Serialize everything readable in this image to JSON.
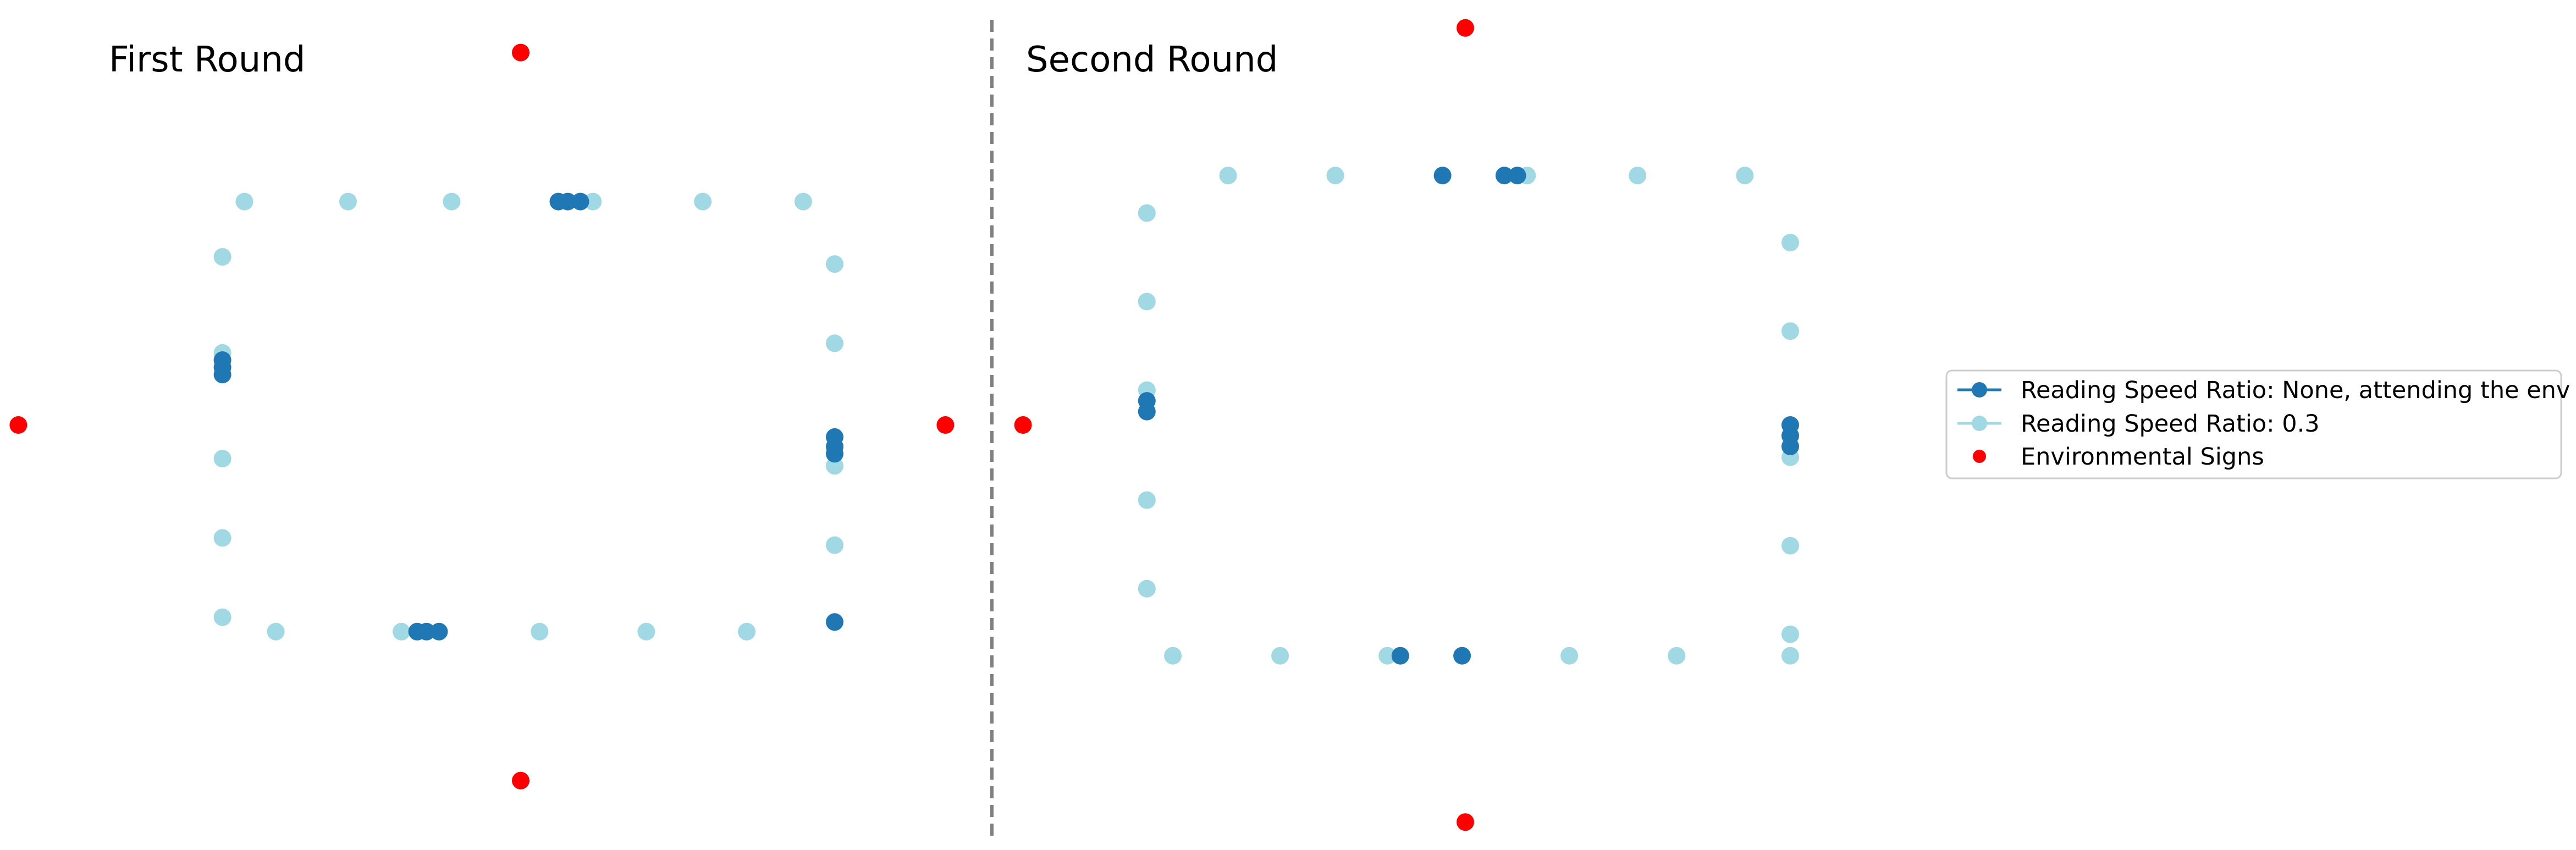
{
  "colors": {
    "attending": "#1f77b4",
    "ratio": "#a0d8e4",
    "signs": "#ff0000",
    "divider": "#808080"
  },
  "chart_data": [
    {
      "type": "scatter",
      "title": "First Round",
      "xlim": [
        -1.6,
        1.6
      ],
      "ylim": [
        -1.6,
        1.6
      ],
      "grid": false,
      "axes_visible": false,
      "series": [
        {
          "name": "Reading Speed Ratio: 0.3",
          "color": "#a0d8e4",
          "points": [
            [
              -0.88,
              0.93
            ],
            [
              -0.55,
              0.93
            ],
            [
              -0.22,
              0.93
            ],
            [
              0.23,
              0.93
            ],
            [
              0.58,
              0.93
            ],
            [
              0.9,
              0.93
            ],
            [
              1.0,
              0.67
            ],
            [
              1.0,
              0.34
            ],
            [
              1.0,
              -0.17
            ],
            [
              1.0,
              -0.5
            ],
            [
              -0.95,
              0.7
            ],
            [
              -0.95,
              0.3
            ],
            [
              -0.95,
              -0.14
            ],
            [
              -0.95,
              -0.47
            ],
            [
              -0.95,
              -0.8
            ],
            [
              -0.78,
              -0.86
            ],
            [
              -0.38,
              -0.86
            ],
            [
              0.06,
              -0.86
            ],
            [
              0.4,
              -0.86
            ],
            [
              0.72,
              -0.86
            ]
          ]
        },
        {
          "name": "Reading Speed Ratio: None, attending the env",
          "color": "#1f77b4",
          "points": [
            [
              0.12,
              0.93
            ],
            [
              0.15,
              0.93
            ],
            [
              0.19,
              0.93
            ],
            [
              1.0,
              -0.05
            ],
            [
              1.0,
              -0.09
            ],
            [
              1.0,
              -0.12
            ],
            [
              -0.95,
              0.27
            ],
            [
              -0.95,
              0.24
            ],
            [
              -0.95,
              0.21
            ],
            [
              -0.33,
              -0.86
            ],
            [
              -0.3,
              -0.86
            ],
            [
              -0.26,
              -0.86
            ],
            [
              1.0,
              -0.82
            ]
          ]
        },
        {
          "name": "Environmental Signs",
          "color": "#ff0000",
          "points": [
            [
              0,
              1.55
            ],
            [
              1.6,
              0
            ],
            [
              0,
              -1.48
            ],
            [
              -1.6,
              0
            ]
          ]
        }
      ]
    },
    {
      "type": "scatter",
      "title": "Second Round",
      "xlim": [
        -1.6,
        1.6
      ],
      "ylim": [
        -1.6,
        1.6
      ],
      "grid": false,
      "axes_visible": false,
      "series": [
        {
          "name": "Reading Speed Ratio: 0.3",
          "color": "#a0d8e4",
          "points": [
            [
              -0.73,
              0.93
            ],
            [
              -0.4,
              0.93
            ],
            [
              0.19,
              0.93
            ],
            [
              0.53,
              0.93
            ],
            [
              0.86,
              0.93
            ],
            [
              -0.98,
              0.79
            ],
            [
              -0.98,
              0.46
            ],
            [
              -0.98,
              0.13
            ],
            [
              -0.98,
              -0.28
            ],
            [
              -0.98,
              -0.61
            ],
            [
              1.0,
              0.68
            ],
            [
              1.0,
              0.35
            ],
            [
              1.0,
              -0.12
            ],
            [
              1.0,
              -0.45
            ],
            [
              1.0,
              -0.78
            ],
            [
              1.0,
              -0.86
            ],
            [
              -0.9,
              -0.86
            ],
            [
              -0.57,
              -0.86
            ],
            [
              -0.24,
              -0.86
            ],
            [
              0.32,
              -0.86
            ],
            [
              0.65,
              -0.86
            ]
          ]
        },
        {
          "name": "Reading Speed Ratio: None, attending the env",
          "color": "#1f77b4",
          "points": [
            [
              -0.07,
              0.93
            ],
            [
              0.12,
              0.93
            ],
            [
              0.16,
              0.93
            ],
            [
              -0.98,
              0.09
            ],
            [
              -0.98,
              0.05
            ],
            [
              1.0,
              0.0
            ],
            [
              1.0,
              -0.04
            ],
            [
              1.0,
              -0.08
            ],
            [
              -0.2,
              -0.86
            ],
            [
              -0.01,
              -0.86
            ]
          ]
        },
        {
          "name": "Environmental Signs",
          "color": "#ff0000",
          "points": [
            [
              0,
              1.48
            ],
            [
              1.6,
              0
            ],
            [
              0,
              -1.48
            ],
            [
              -1.6,
              0
            ]
          ]
        }
      ]
    }
  ],
  "legend": {
    "placement": "right",
    "entries": [
      {
        "label": "Reading Speed Ratio: None, attending the env",
        "color": "#1f77b4",
        "marker": "line-dot"
      },
      {
        "label": "Reading Speed Ratio: 0.3",
        "color": "#a0d8e4",
        "marker": "line-dot"
      },
      {
        "label": "Environmental Signs",
        "color": "#ff0000",
        "marker": "dot"
      }
    ]
  }
}
